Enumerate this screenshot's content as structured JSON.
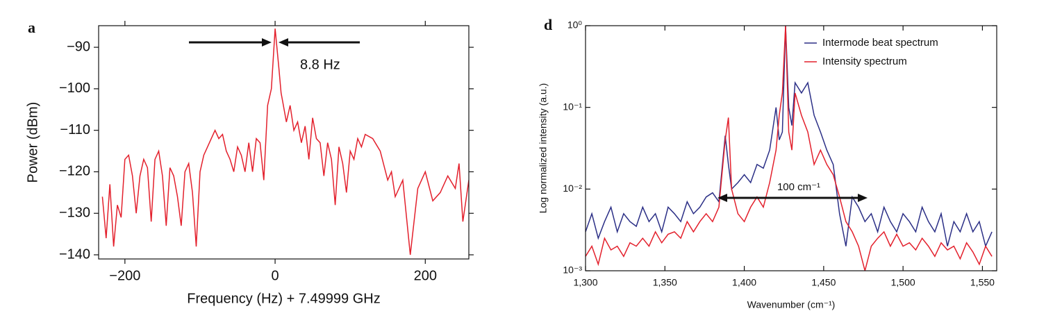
{
  "chart_data": [
    {
      "type": "line",
      "panel_label": "a",
      "x_label": "Frequency (Hz) + 7.49999 GHz",
      "y_label": "Power (dBm)",
      "annotation": "8.8 Hz",
      "color": "#e3202c",
      "x": [
        -230,
        -225,
        -220,
        -215,
        -210,
        -205,
        -200,
        -195,
        -190,
        -185,
        -180,
        -175,
        -170,
        -165,
        -160,
        -155,
        -150,
        -145,
        -140,
        -135,
        -130,
        -125,
        -120,
        -115,
        -110,
        -105,
        -100,
        -95,
        -90,
        -85,
        -80,
        -75,
        -70,
        -65,
        -60,
        -55,
        -50,
        -45,
        -40,
        -35,
        -30,
        -25,
        -20,
        -15,
        -10,
        -5,
        0,
        5,
        8,
        10,
        15,
        20,
        25,
        30,
        35,
        40,
        45,
        50,
        55,
        60,
        65,
        70,
        75,
        80,
        85,
        90,
        95,
        100,
        105,
        110,
        115,
        120,
        130,
        140,
        150,
        155,
        160,
        170,
        180,
        190,
        200,
        210,
        220,
        230,
        240,
        245,
        250,
        258
      ],
      "values": [
        -126,
        -136,
        -123,
        -138,
        -128,
        -131,
        -117,
        -116,
        -121,
        -130,
        -121,
        -117,
        -119,
        -132,
        -117,
        -115,
        -121,
        -133,
        -119,
        -121,
        -126,
        -133,
        -120,
        -118,
        -125,
        -138,
        -120,
        -116,
        -114,
        -112,
        -110,
        -112,
        -111,
        -115,
        -117,
        -120,
        -114,
        -116,
        -120,
        -113,
        -120,
        -112,
        -113,
        -122,
        -104,
        -100,
        -85.5,
        -95,
        -101,
        -103,
        -108,
        -104,
        -110,
        -108,
        -113,
        -109,
        -117,
        -107,
        -112,
        -113,
        -121,
        -113,
        -117,
        -128,
        -114,
        -118,
        -125,
        -115,
        -117,
        -112,
        -114,
        -111,
        -112,
        -115,
        -122,
        -120,
        -126,
        -122,
        -140,
        -124,
        -120,
        -127,
        -125,
        -121,
        -124,
        -118,
        -132,
        -122
      ],
      "xlim": [
        -235,
        258
      ],
      "ylim": [
        -141,
        -84.8
      ],
      "xticks": [
        {
          "value": -200,
          "label": "−200"
        },
        0,
        200
      ],
      "yticks": [
        {
          "value": -90,
          "label": "−90"
        },
        {
          "value": -100,
          "label": "−100"
        },
        {
          "value": -110,
          "label": "−110"
        },
        {
          "value": -120,
          "label": "−120"
        },
        {
          "value": -130,
          "label": "−130"
        },
        {
          "value": -140,
          "label": "−140"
        }
      ]
    },
    {
      "type": "line",
      "panel_label": "d",
      "log_y": true,
      "x_label": "Wavenumber (cm⁻¹)",
      "y_label": "Log normalized intensity (a.u.)",
      "annotation": "100 cm⁻¹",
      "legend": "upper right",
      "x": [
        1300,
        1304,
        1308,
        1312,
        1316,
        1320,
        1324,
        1328,
        1332,
        1336,
        1340,
        1344,
        1348,
        1352,
        1356,
        1360,
        1364,
        1368,
        1372,
        1376,
        1380,
        1384,
        1388,
        1390,
        1392,
        1396,
        1400,
        1404,
        1408,
        1412,
        1416,
        1420,
        1422,
        1424,
        1426,
        1428,
        1430,
        1432,
        1436,
        1440,
        1444,
        1448,
        1452,
        1456,
        1460,
        1464,
        1468,
        1472,
        1476,
        1480,
        1484,
        1488,
        1492,
        1496,
        1500,
        1504,
        1508,
        1512,
        1516,
        1520,
        1524,
        1528,
        1532,
        1536,
        1540,
        1544,
        1548,
        1552,
        1556
      ],
      "series": [
        {
          "name": "Intermode beat spectrum",
          "color": "#2b2f86",
          "values": [
            0.003,
            0.005,
            0.0025,
            0.004,
            0.006,
            0.003,
            0.005,
            0.004,
            0.0035,
            0.006,
            0.004,
            0.005,
            0.003,
            0.006,
            0.005,
            0.004,
            0.007,
            0.005,
            0.006,
            0.008,
            0.009,
            0.007,
            0.045,
            0.02,
            0.01,
            0.012,
            0.015,
            0.012,
            0.02,
            0.018,
            0.03,
            0.1,
            0.04,
            0.05,
            1.0,
            0.1,
            0.06,
            0.2,
            0.15,
            0.2,
            0.08,
            0.05,
            0.03,
            0.02,
            0.005,
            0.002,
            0.008,
            0.006,
            0.004,
            0.005,
            0.003,
            0.006,
            0.004,
            0.003,
            0.005,
            0.004,
            0.003,
            0.006,
            0.004,
            0.003,
            0.005,
            0.002,
            0.004,
            0.003,
            0.005,
            0.003,
            0.004,
            0.002,
            0.003
          ]
        },
        {
          "name": "Intensity spectrum",
          "color": "#e3202c",
          "values": [
            0.0015,
            0.002,
            0.0012,
            0.0025,
            0.0018,
            0.002,
            0.0015,
            0.0022,
            0.002,
            0.0025,
            0.002,
            0.003,
            0.0022,
            0.0028,
            0.003,
            0.0025,
            0.004,
            0.003,
            0.004,
            0.005,
            0.004,
            0.006,
            0.04,
            0.075,
            0.01,
            0.005,
            0.004,
            0.006,
            0.008,
            0.006,
            0.012,
            0.03,
            0.08,
            0.15,
            1.0,
            0.05,
            0.03,
            0.15,
            0.08,
            0.05,
            0.02,
            0.03,
            0.02,
            0.015,
            0.008,
            0.004,
            0.003,
            0.002,
            0.001,
            0.002,
            0.0025,
            0.003,
            0.002,
            0.0028,
            0.002,
            0.0022,
            0.0018,
            0.0025,
            0.002,
            0.0015,
            0.0022,
            0.0018,
            0.002,
            0.0014,
            0.0022,
            0.0017,
            0.0012,
            0.002,
            0.0015
          ]
        }
      ],
      "xlim": [
        1300,
        1559
      ],
      "ylim": [
        0.001,
        1
      ],
      "xticks": [
        {
          "value": 1300,
          "label": "1,300"
        },
        {
          "value": 1350,
          "label": "1,350"
        },
        {
          "value": 1400,
          "label": "1,400"
        },
        {
          "value": 1450,
          "label": "1,450"
        },
        {
          "value": 1500,
          "label": "1,500"
        },
        {
          "value": 1550,
          "label": "1,550"
        }
      ],
      "yticks": [
        {
          "value": 0.001,
          "label": "10⁻³"
        },
        {
          "value": 0.01,
          "label": "10⁻²"
        },
        {
          "value": 0.1,
          "label": "10⁻¹"
        },
        {
          "value": 1,
          "label": "10⁰"
        }
      ]
    }
  ]
}
